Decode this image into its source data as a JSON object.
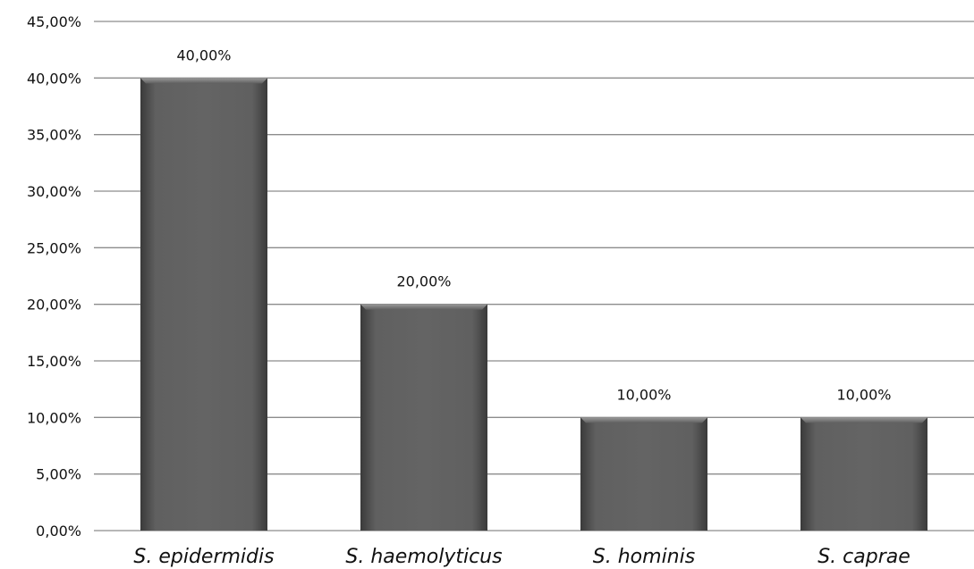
{
  "chart_data": {
    "type": "bar",
    "title": "",
    "xlabel": "",
    "ylabel": "",
    "categories": [
      "S. epidermidis",
      "S. haemolyticus",
      "S. hominis",
      "S. caprae"
    ],
    "values": [
      40,
      20,
      10,
      10
    ],
    "value_labels": [
      "40,00%",
      "20,00%",
      "10,00%",
      "10,00%"
    ],
    "ylim": [
      0,
      45
    ],
    "yticks": [
      0,
      5,
      10,
      15,
      20,
      25,
      30,
      35,
      40,
      45
    ],
    "ytick_labels": [
      "0,00%",
      "5,00%",
      "10,00%",
      "15,00%",
      "20,00%",
      "25,00%",
      "30,00%",
      "35,00%",
      "40,00%",
      "45,00%"
    ],
    "grid": true,
    "legend": "none",
    "bar_color": "#5a5a5a",
    "grid_color": "#8c8c8c",
    "category_font_style": "italic"
  }
}
